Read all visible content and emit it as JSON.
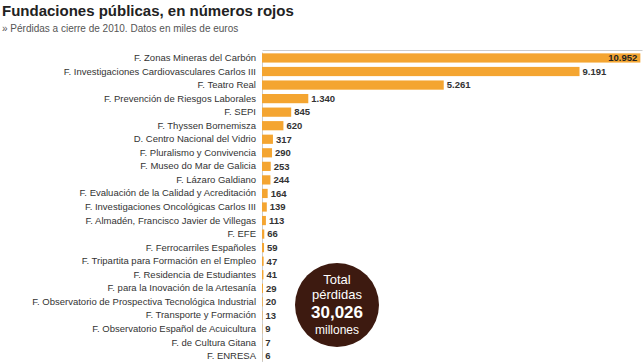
{
  "chart_data": {
    "type": "bar",
    "orientation": "horizontal",
    "title": "Fundaciones públicas, en números rojos",
    "subtitle": "» Pérdidas a cierre de 2010. Datos en miles de euros",
    "categories": [
      "F. Zonas Mineras del Carbón",
      "F. Investigaciones Cardiovasculares Carlos III",
      "F. Teatro Real",
      "F. Prevención de Riesgos Laborales",
      "F. SEPI",
      "F. Thyssen Bornemisza",
      "D. Centro Nacional del Vidrio",
      "F. Pluralismo y Convivencia",
      "F. Museo do Mar de Galicia",
      "F. Lázaro Galdiano",
      "F. Evaluación de la Calidad y Acreditación",
      "F. Investigaciones Oncológicas Carlos III",
      "F. Almadén, Francisco Javier de Villegas",
      "F. EFE",
      "F. Ferrocarriles Españoles",
      "F. Tripartita para Formación en el Empleo",
      "F. Residencia de Estudiantes",
      "F. para la Inovación de la Artesanía",
      "F. Observatorio de Prospectiva Tecnológica Industrial",
      "F. Transporte y Formación",
      "F. Observatorio Español de Acuicultura",
      "F. de Cultura Gitana",
      "F. ENRESA"
    ],
    "values": [
      10952,
      9191,
      5261,
      1340,
      845,
      620,
      317,
      290,
      253,
      244,
      164,
      139,
      113,
      66,
      59,
      47,
      41,
      29,
      20,
      13,
      9,
      7,
      6
    ],
    "value_labels": [
      "10.952",
      "9.191",
      "5.261",
      "1.340",
      "845",
      "620",
      "317",
      "290",
      "253",
      "244",
      "164",
      "139",
      "113",
      "66",
      "59",
      "47",
      "41",
      "29",
      "20",
      "13",
      "9",
      "7",
      "6"
    ],
    "color": "#f4a531",
    "xlim": [
      0,
      11000
    ],
    "data_labels": true,
    "tick_labels": "y",
    "annotations": [
      "Total",
      "pérdidas",
      "30,026",
      "millones"
    ]
  }
}
